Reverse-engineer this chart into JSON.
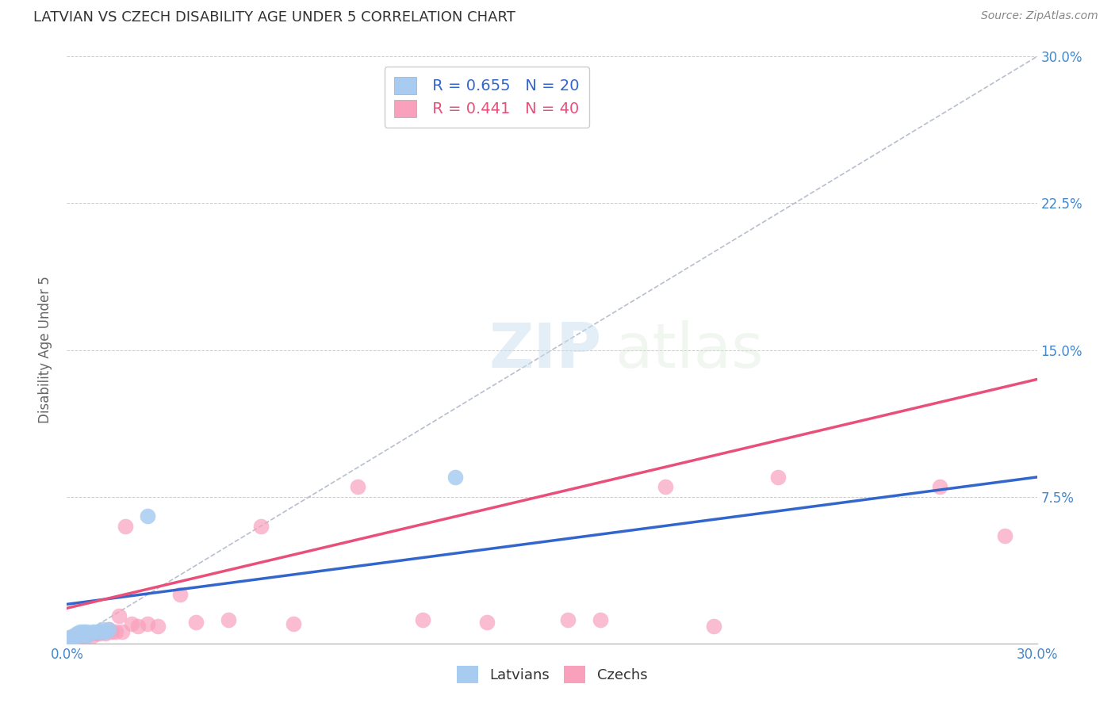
{
  "title": "LATVIAN VS CZECH DISABILITY AGE UNDER 5 CORRELATION CHART",
  "source": "Source: ZipAtlas.com",
  "ylabel": "Disability Age Under 5",
  "xlim": [
    0.0,
    0.3
  ],
  "ylim": [
    0.0,
    0.3
  ],
  "x_ticks": [
    0.0,
    0.05,
    0.1,
    0.15,
    0.2,
    0.25,
    0.3
  ],
  "y_ticks": [
    0.0,
    0.075,
    0.15,
    0.225,
    0.3
  ],
  "latvian_R": 0.655,
  "latvian_N": 20,
  "czech_R": 0.441,
  "czech_N": 40,
  "latvian_color": "#a8ccf0",
  "latvian_line_color": "#3366cc",
  "czech_color": "#f9a0bc",
  "czech_line_color": "#e8507a",
  "background_color": "#ffffff",
  "latvian_points_x": [
    0.001,
    0.002,
    0.002,
    0.003,
    0.003,
    0.004,
    0.004,
    0.005,
    0.005,
    0.006,
    0.006,
    0.007,
    0.008,
    0.009,
    0.01,
    0.011,
    0.012,
    0.013,
    0.025,
    0.12
  ],
  "latvian_points_y": [
    0.003,
    0.003,
    0.004,
    0.004,
    0.005,
    0.004,
    0.006,
    0.005,
    0.006,
    0.004,
    0.006,
    0.005,
    0.006,
    0.006,
    0.006,
    0.007,
    0.006,
    0.007,
    0.065,
    0.085
  ],
  "czech_points_x": [
    0.001,
    0.002,
    0.002,
    0.003,
    0.003,
    0.004,
    0.005,
    0.006,
    0.007,
    0.007,
    0.008,
    0.009,
    0.01,
    0.011,
    0.012,
    0.013,
    0.014,
    0.015,
    0.016,
    0.017,
    0.018,
    0.02,
    0.022,
    0.025,
    0.028,
    0.035,
    0.04,
    0.05,
    0.06,
    0.07,
    0.09,
    0.11,
    0.13,
    0.155,
    0.165,
    0.185,
    0.2,
    0.22,
    0.27,
    0.29
  ],
  "czech_points_y": [
    0.003,
    0.003,
    0.004,
    0.003,
    0.004,
    0.004,
    0.004,
    0.004,
    0.005,
    0.005,
    0.004,
    0.005,
    0.005,
    0.006,
    0.005,
    0.007,
    0.006,
    0.006,
    0.014,
    0.006,
    0.06,
    0.01,
    0.009,
    0.01,
    0.009,
    0.025,
    0.011,
    0.012,
    0.06,
    0.01,
    0.08,
    0.012,
    0.011,
    0.012,
    0.012,
    0.08,
    0.009,
    0.085,
    0.08,
    0.055
  ],
  "lv_line_x": [
    0.0,
    0.3
  ],
  "lv_line_y": [
    0.02,
    0.085
  ],
  "cz_line_x": [
    0.0,
    0.3
  ],
  "cz_line_y": [
    0.018,
    0.135
  ]
}
